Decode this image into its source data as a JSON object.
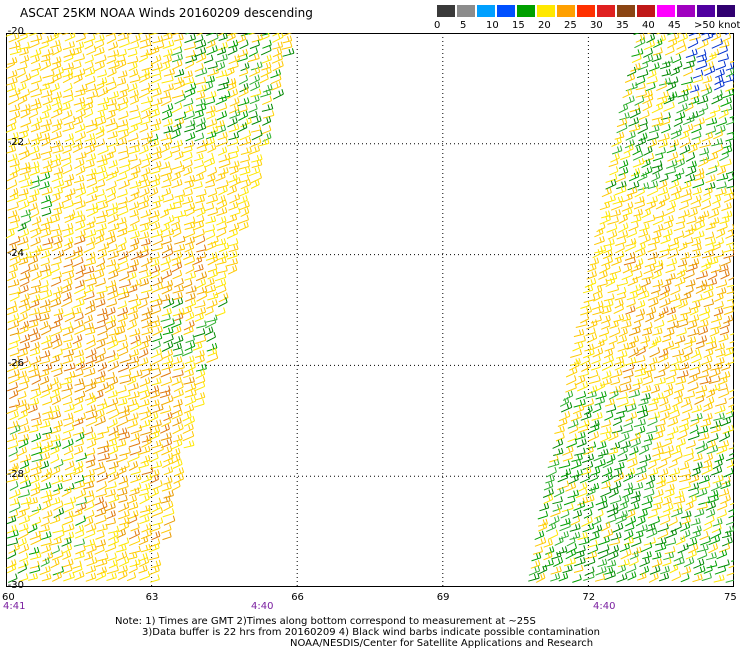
{
  "title": "ASCAT 25KM NOAA Winds 20160209 descending",
  "legend": {
    "labels": [
      "0",
      "5",
      "10",
      "15",
      "20",
      "25",
      "30",
      "35",
      "40",
      "45",
      ">50 knots"
    ],
    "colors": [
      "#3a3a3a",
      "#8c8c8c",
      "#00a0ff",
      "#0050ff",
      "#00a000",
      "#ffe800",
      "#ffa000",
      "#ff3000",
      "#e02020",
      "#8b4513",
      "#c01818",
      "#ff00ff",
      "#a000c0",
      "#5000a0",
      "#300070"
    ]
  },
  "axes": {
    "lat_labels": [
      "-20",
      "-22",
      "-24",
      "-26",
      "-28",
      "-30"
    ],
    "lon_labels": [
      "60",
      "63",
      "66",
      "69",
      "72",
      "75"
    ]
  },
  "times": [
    "4:41",
    "4:40",
    "4:40"
  ],
  "notes": {
    "line1": "Note: 1) Times are GMT 2)Times along bottom correspond to measurement at ~25S",
    "line2": "3)Data buffer is 22 hrs from 20160209 4) Black wind barbs indicate possible contamination",
    "line3": "NOAA/NESDIS/Center for Satellite Applications and Research"
  }
}
